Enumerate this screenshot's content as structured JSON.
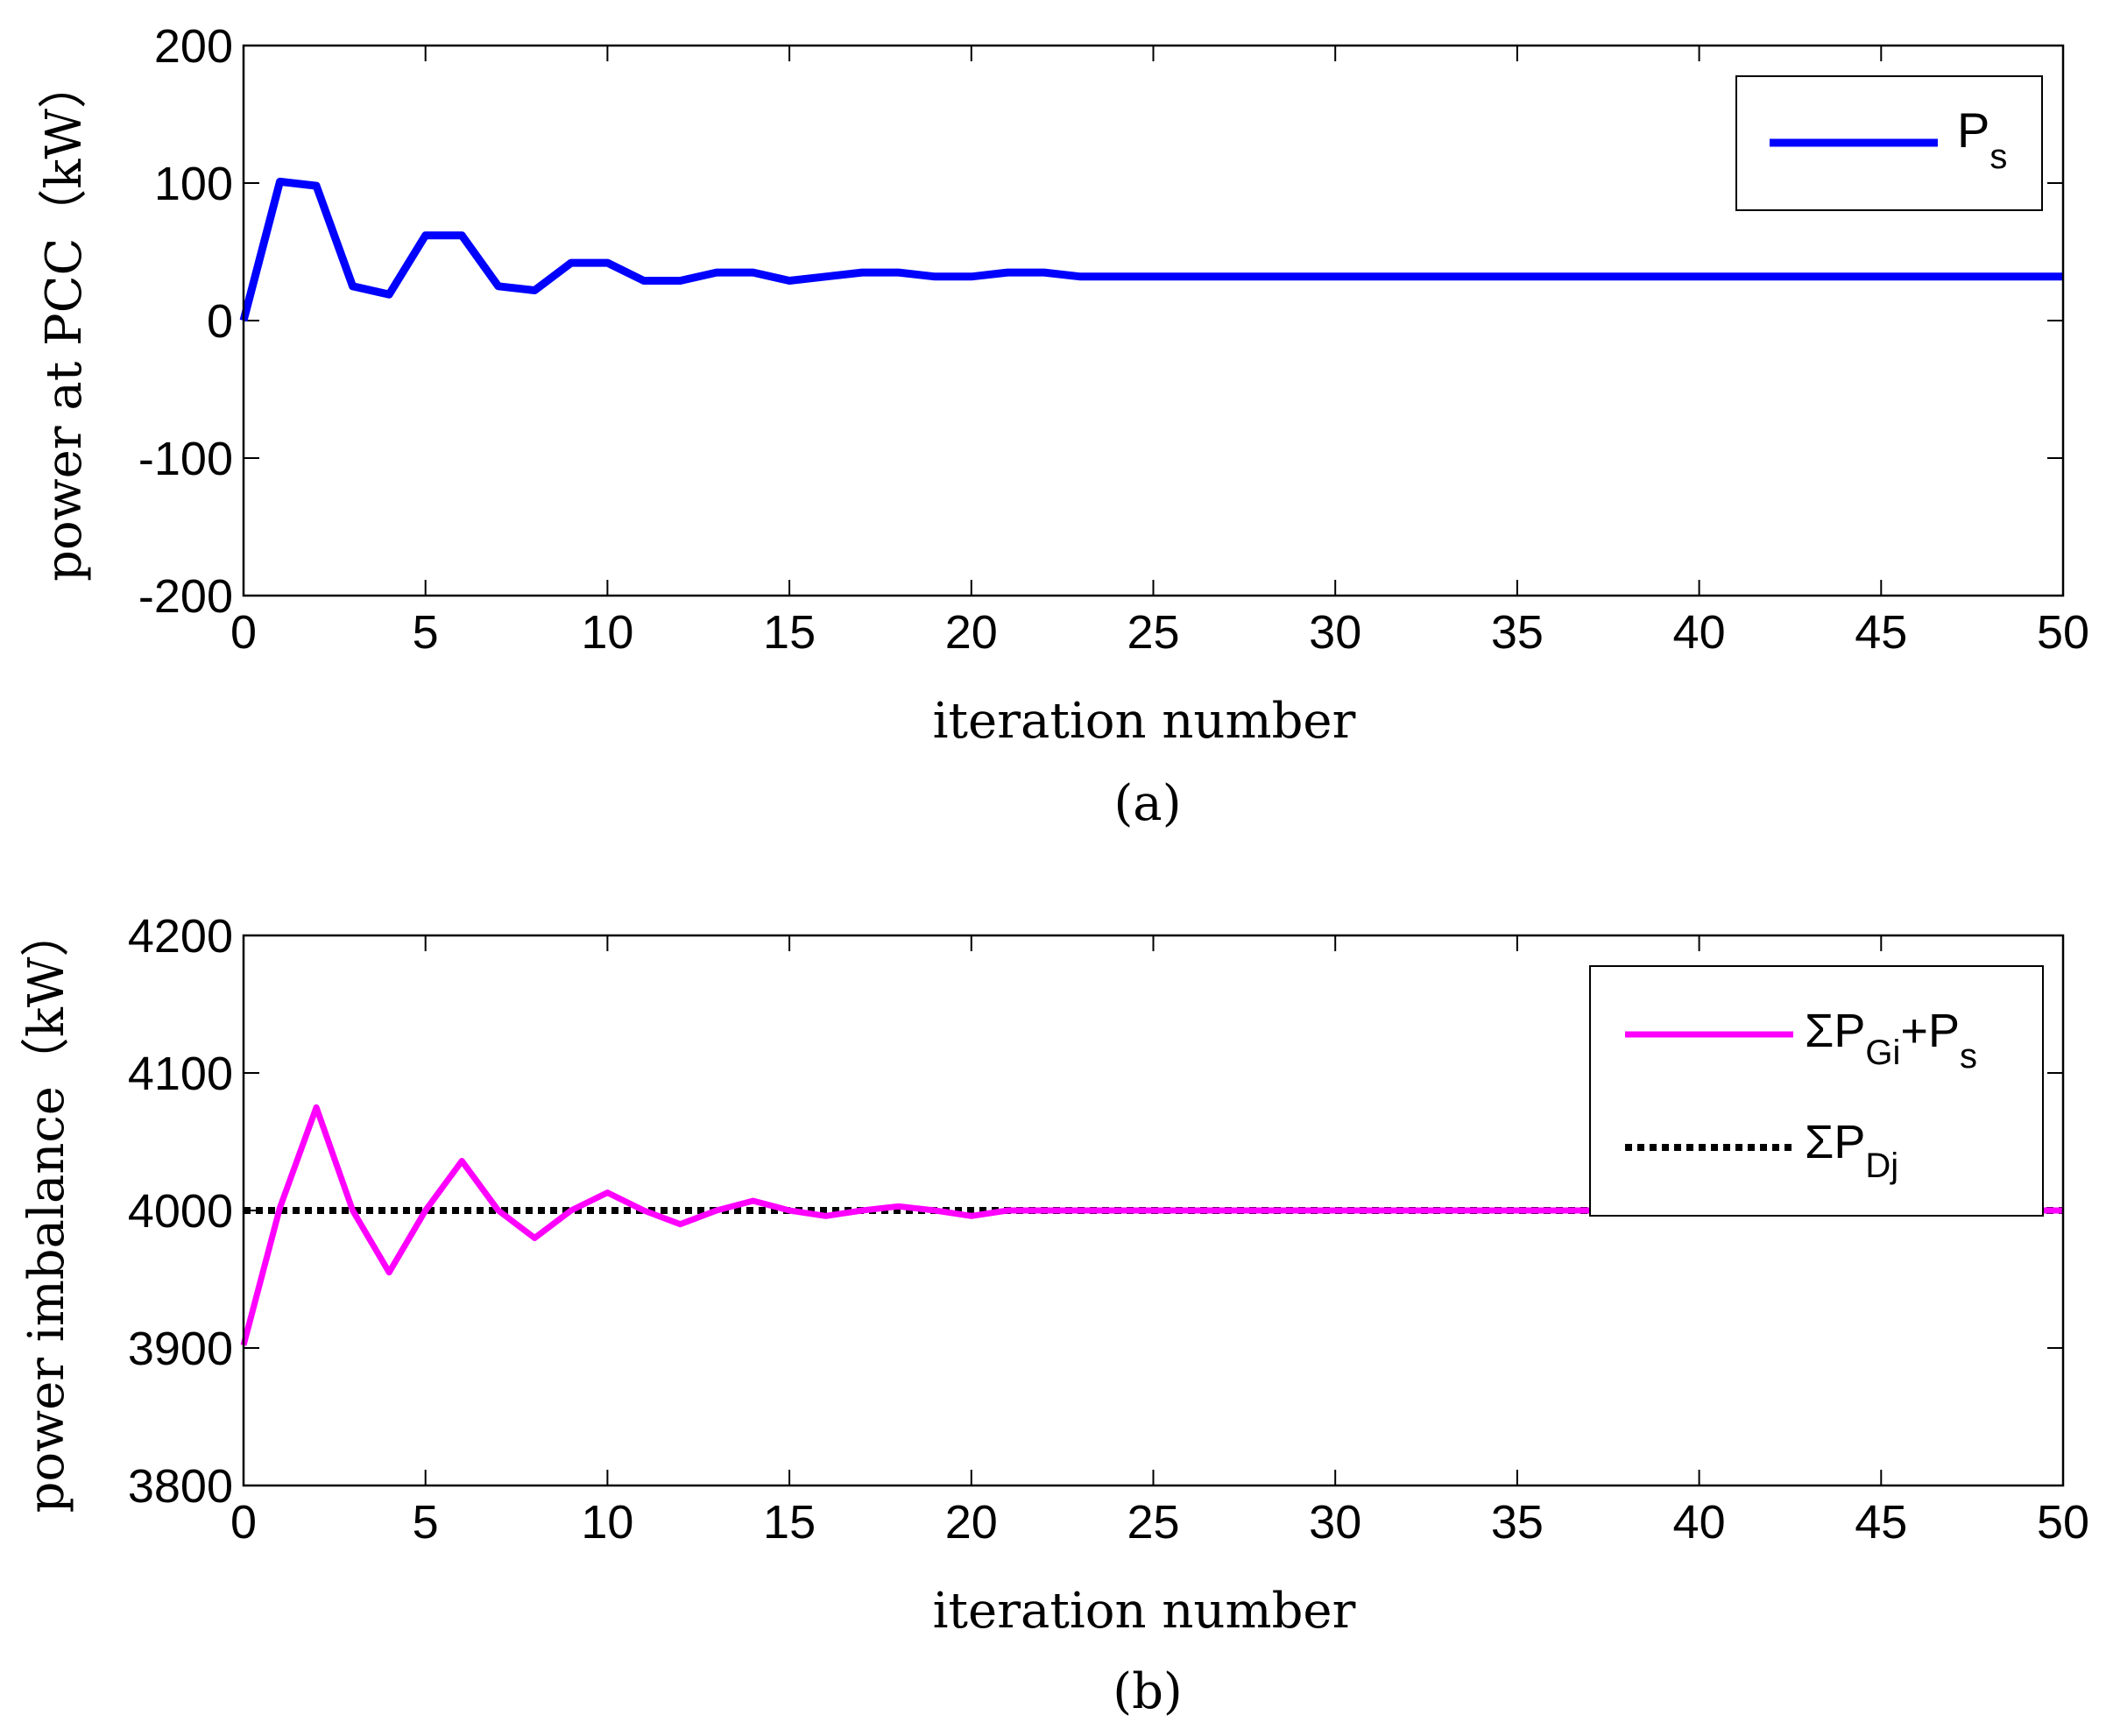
{
  "chart_data": [
    {
      "type": "line",
      "caption": "(a)",
      "xlabel": "iteration number",
      "ylabel": "power at PCC（kW）",
      "xlim": [
        0,
        50
      ],
      "ylim": [
        -200,
        200
      ],
      "xticks": [
        "0",
        "5",
        "10",
        "15",
        "20",
        "25",
        "30",
        "35",
        "40",
        "45",
        "50"
      ],
      "yticks": [
        "200",
        "100",
        "0",
        "-100",
        "-200"
      ],
      "legend_position": "top-right",
      "series": [
        {
          "name": "P",
          "name_sub": "s",
          "color": "#0000ff",
          "style": "solid",
          "x": [
            0,
            1,
            2,
            3,
            4,
            5,
            6,
            7,
            8,
            9,
            10,
            11,
            12,
            13,
            14,
            15,
            16,
            17,
            18,
            19,
            20,
            21,
            22,
            23,
            24,
            25,
            30,
            35,
            40,
            45,
            50
          ],
          "y": [
            0,
            101,
            98,
            25,
            19,
            62,
            62,
            25,
            22,
            42,
            42,
            29,
            29,
            35,
            35,
            29,
            32,
            35,
            35,
            32,
            32,
            35,
            35,
            32,
            32,
            32,
            32,
            32,
            32,
            32,
            32
          ]
        }
      ]
    },
    {
      "type": "line",
      "caption": "(b)",
      "xlabel": "iteration number",
      "ylabel": "power imbalance（kW）",
      "xlim": [
        0,
        50
      ],
      "ylim": [
        3800,
        4200
      ],
      "xticks": [
        "0",
        "5",
        "10",
        "15",
        "20",
        "25",
        "30",
        "35",
        "40",
        "45",
        "50"
      ],
      "yticks": [
        "4200",
        "4100",
        "4000",
        "3900",
        "3800"
      ],
      "legend_position": "top-right",
      "series": [
        {
          "name": "ΣP",
          "name_sub": "Gi",
          "name_tail": "+P",
          "name_tail_sub": "s",
          "color": "#ff00ff",
          "style": "solid",
          "x": [
            0,
            1,
            2,
            3,
            4,
            5,
            6,
            7,
            8,
            9,
            10,
            11,
            12,
            13,
            14,
            15,
            16,
            17,
            18,
            19,
            20,
            21,
            22,
            25,
            30,
            35,
            40,
            45,
            50
          ],
          "y": [
            3902,
            4002,
            4075,
            4000,
            3955,
            4000,
            4036,
            4000,
            3980,
            4000,
            4013,
            4000,
            3990,
            4000,
            4007,
            4000,
            3996,
            4000,
            4003,
            4000,
            3996,
            4000,
            4000,
            4000,
            4000,
            4000,
            4000,
            4000,
            4000
          ]
        },
        {
          "name": "ΣP",
          "name_sub": "Dj",
          "color": "#000000",
          "style": "dotted",
          "x": [
            0,
            50
          ],
          "y": [
            4000,
            4000
          ]
        }
      ]
    }
  ]
}
